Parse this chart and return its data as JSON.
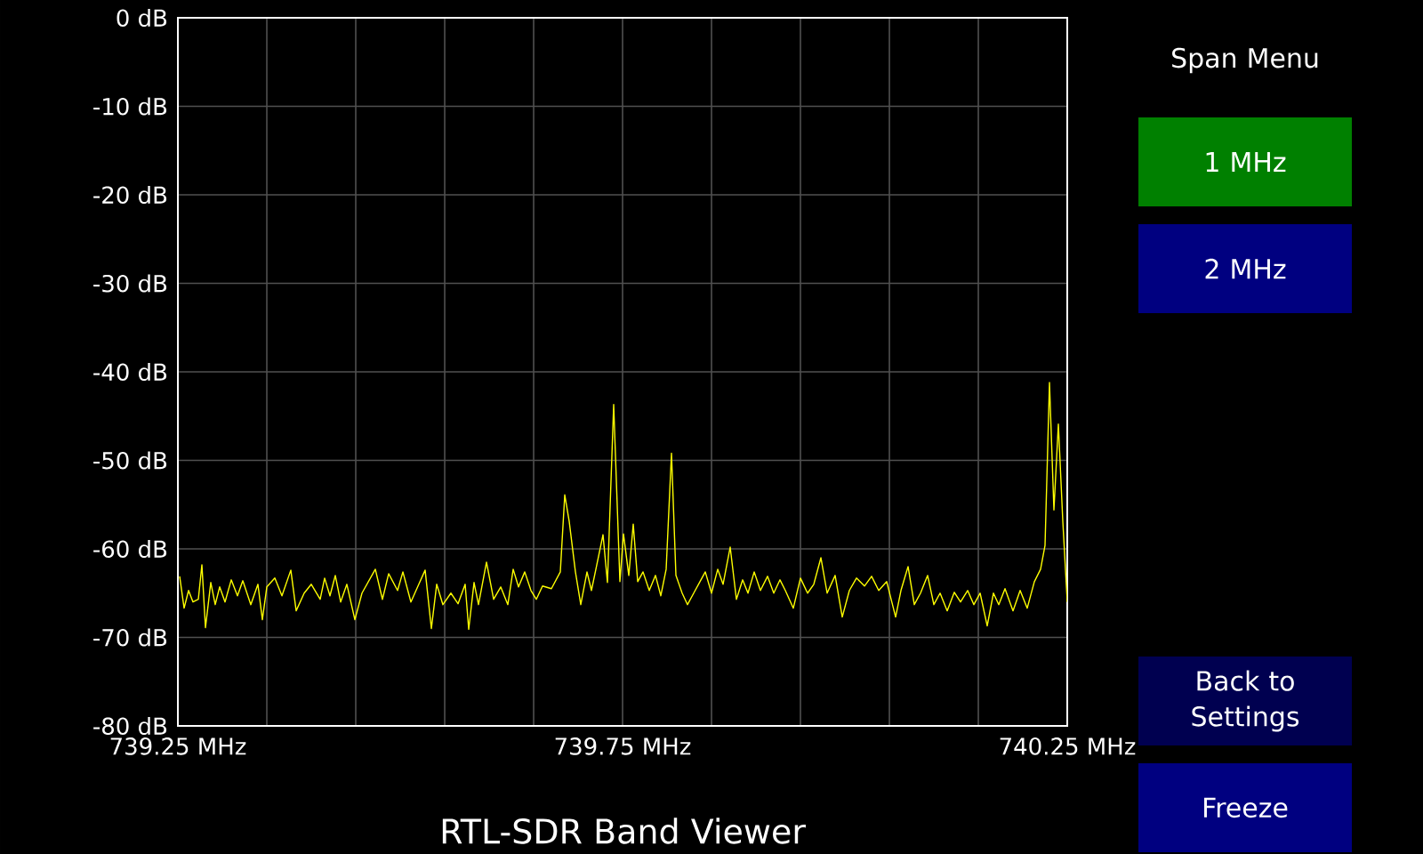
{
  "chart_data": {
    "type": "line",
    "title": "RTL-SDR Band Viewer",
    "xlim": [
      739.25,
      740.25
    ],
    "ylim": [
      -80,
      0
    ],
    "xticks": [
      {
        "value": 739.25,
        "label": "739.25 MHz"
      },
      {
        "value": 739.35,
        "label": null
      },
      {
        "value": 739.45,
        "label": null
      },
      {
        "value": 739.55,
        "label": null
      },
      {
        "value": 739.65,
        "label": null
      },
      {
        "value": 739.75,
        "label": "739.75 MHz"
      },
      {
        "value": 739.85,
        "label": null
      },
      {
        "value": 739.95,
        "label": null
      },
      {
        "value": 740.05,
        "label": null
      },
      {
        "value": 740.15,
        "label": null
      },
      {
        "value": 740.25,
        "label": "740.25 MHz"
      }
    ],
    "yticks": [
      {
        "value": 0,
        "label": "0 dB"
      },
      {
        "value": -10,
        "label": "-10 dB"
      },
      {
        "value": -20,
        "label": "-20 dB"
      },
      {
        "value": -30,
        "label": "-30 dB"
      },
      {
        "value": -40,
        "label": "-40 dB"
      },
      {
        "value": -50,
        "label": "-50 dB"
      },
      {
        "value": -60,
        "label": "-60 dB"
      },
      {
        "value": -70,
        "label": "-70 dB"
      },
      {
        "value": -80,
        "label": "-80 dB"
      }
    ],
    "grid": true,
    "annotations": [
      "Span Menu",
      "1 MHz",
      "2 MHz",
      "Back to Settings",
      "Freeze"
    ],
    "series": [
      {
        "color": "#ffff00",
        "x": [
          739.252,
          739.257,
          739.262,
          739.267,
          739.273,
          739.277,
          739.281,
          739.287,
          739.292,
          739.297,
          739.303,
          739.31,
          739.317,
          739.323,
          739.332,
          739.34,
          739.345,
          739.35,
          739.359,
          739.367,
          739.377,
          739.383,
          739.392,
          739.4,
          739.41,
          739.415,
          739.421,
          739.427,
          739.433,
          739.44,
          739.449,
          739.457,
          739.472,
          739.48,
          739.487,
          739.497,
          739.503,
          739.512,
          739.52,
          739.528,
          739.535,
          739.541,
          739.548,
          739.557,
          739.565,
          739.573,
          739.577,
          739.583,
          739.588,
          739.597,
          739.605,
          739.613,
          739.621,
          739.627,
          739.633,
          739.64,
          739.647,
          739.653,
          739.66,
          739.67,
          739.68,
          739.685,
          739.69,
          739.697,
          739.703,
          739.71,
          739.715,
          739.72,
          739.728,
          739.733,
          739.74,
          739.747,
          739.751,
          739.757,
          739.762,
          739.767,
          739.773,
          739.78,
          739.787,
          739.793,
          739.799,
          739.805,
          739.81,
          739.817,
          739.823,
          739.83,
          739.837,
          739.843,
          739.85,
          739.857,
          739.863,
          739.871,
          739.878,
          739.885,
          739.891,
          739.898,
          739.905,
          739.913,
          739.92,
          739.927,
          739.933,
          739.942,
          739.95,
          739.958,
          739.965,
          739.973,
          739.98,
          739.989,
          739.997,
          740.005,
          740.013,
          740.022,
          740.03,
          740.038,
          740.047,
          740.057,
          740.063,
          740.071,
          740.078,
          740.085,
          740.093,
          740.1,
          740.107,
          740.115,
          740.123,
          740.13,
          740.138,
          740.145,
          740.152,
          740.16,
          740.167,
          740.173,
          740.18,
          740.189,
          740.197,
          740.205,
          740.213,
          740.22,
          740.225,
          740.23,
          740.235,
          740.24,
          740.245,
          740.25
        ],
        "values": [
          -63.1,
          -66.7,
          -64.7,
          -66.0,
          -65.7,
          -61.8,
          -68.9,
          -63.8,
          -66.3,
          -64.3,
          -66.0,
          -63.5,
          -65.3,
          -63.6,
          -66.3,
          -64.0,
          -68.0,
          -64.3,
          -63.3,
          -65.3,
          -62.4,
          -67.0,
          -65.0,
          -64.0,
          -65.7,
          -63.3,
          -65.3,
          -63.0,
          -66.0,
          -64.0,
          -68.0,
          -65.0,
          -62.3,
          -65.7,
          -62.8,
          -64.7,
          -62.6,
          -66.0,
          -64.2,
          -62.4,
          -69.0,
          -64.0,
          -66.3,
          -65.0,
          -66.2,
          -64.0,
          -69.1,
          -63.8,
          -66.3,
          -61.5,
          -65.7,
          -64.3,
          -66.3,
          -62.3,
          -64.3,
          -62.6,
          -64.7,
          -65.7,
          -64.2,
          -64.5,
          -62.6,
          -53.9,
          -56.9,
          -62.6,
          -66.3,
          -62.6,
          -64.7,
          -62.3,
          -58.4,
          -63.8,
          -43.7,
          -63.7,
          -58.3,
          -63.0,
          -57.2,
          -63.7,
          -62.6,
          -64.7,
          -63.0,
          -65.3,
          -62.3,
          -49.2,
          -63.0,
          -65.0,
          -66.3,
          -65.0,
          -63.7,
          -62.6,
          -65.0,
          -62.3,
          -64.0,
          -59.8,
          -65.7,
          -63.5,
          -65.0,
          -62.6,
          -64.7,
          -63.1,
          -65.0,
          -63.5,
          -64.7,
          -66.7,
          -63.3,
          -65.0,
          -64.0,
          -61.0,
          -65.0,
          -63.0,
          -67.7,
          -64.7,
          -63.3,
          -64.2,
          -63.1,
          -64.7,
          -63.7,
          -67.7,
          -64.7,
          -62.0,
          -66.3,
          -65.0,
          -63.0,
          -66.3,
          -65.0,
          -67.0,
          -64.9,
          -66.0,
          -64.7,
          -66.3,
          -65.0,
          -68.7,
          -65.0,
          -66.3,
          -64.5,
          -67.0,
          -64.7,
          -66.7,
          -63.7,
          -62.3,
          -59.6,
          -41.2,
          -55.6,
          -45.9,
          -56.9,
          -66.0
        ]
      }
    ]
  }
}
